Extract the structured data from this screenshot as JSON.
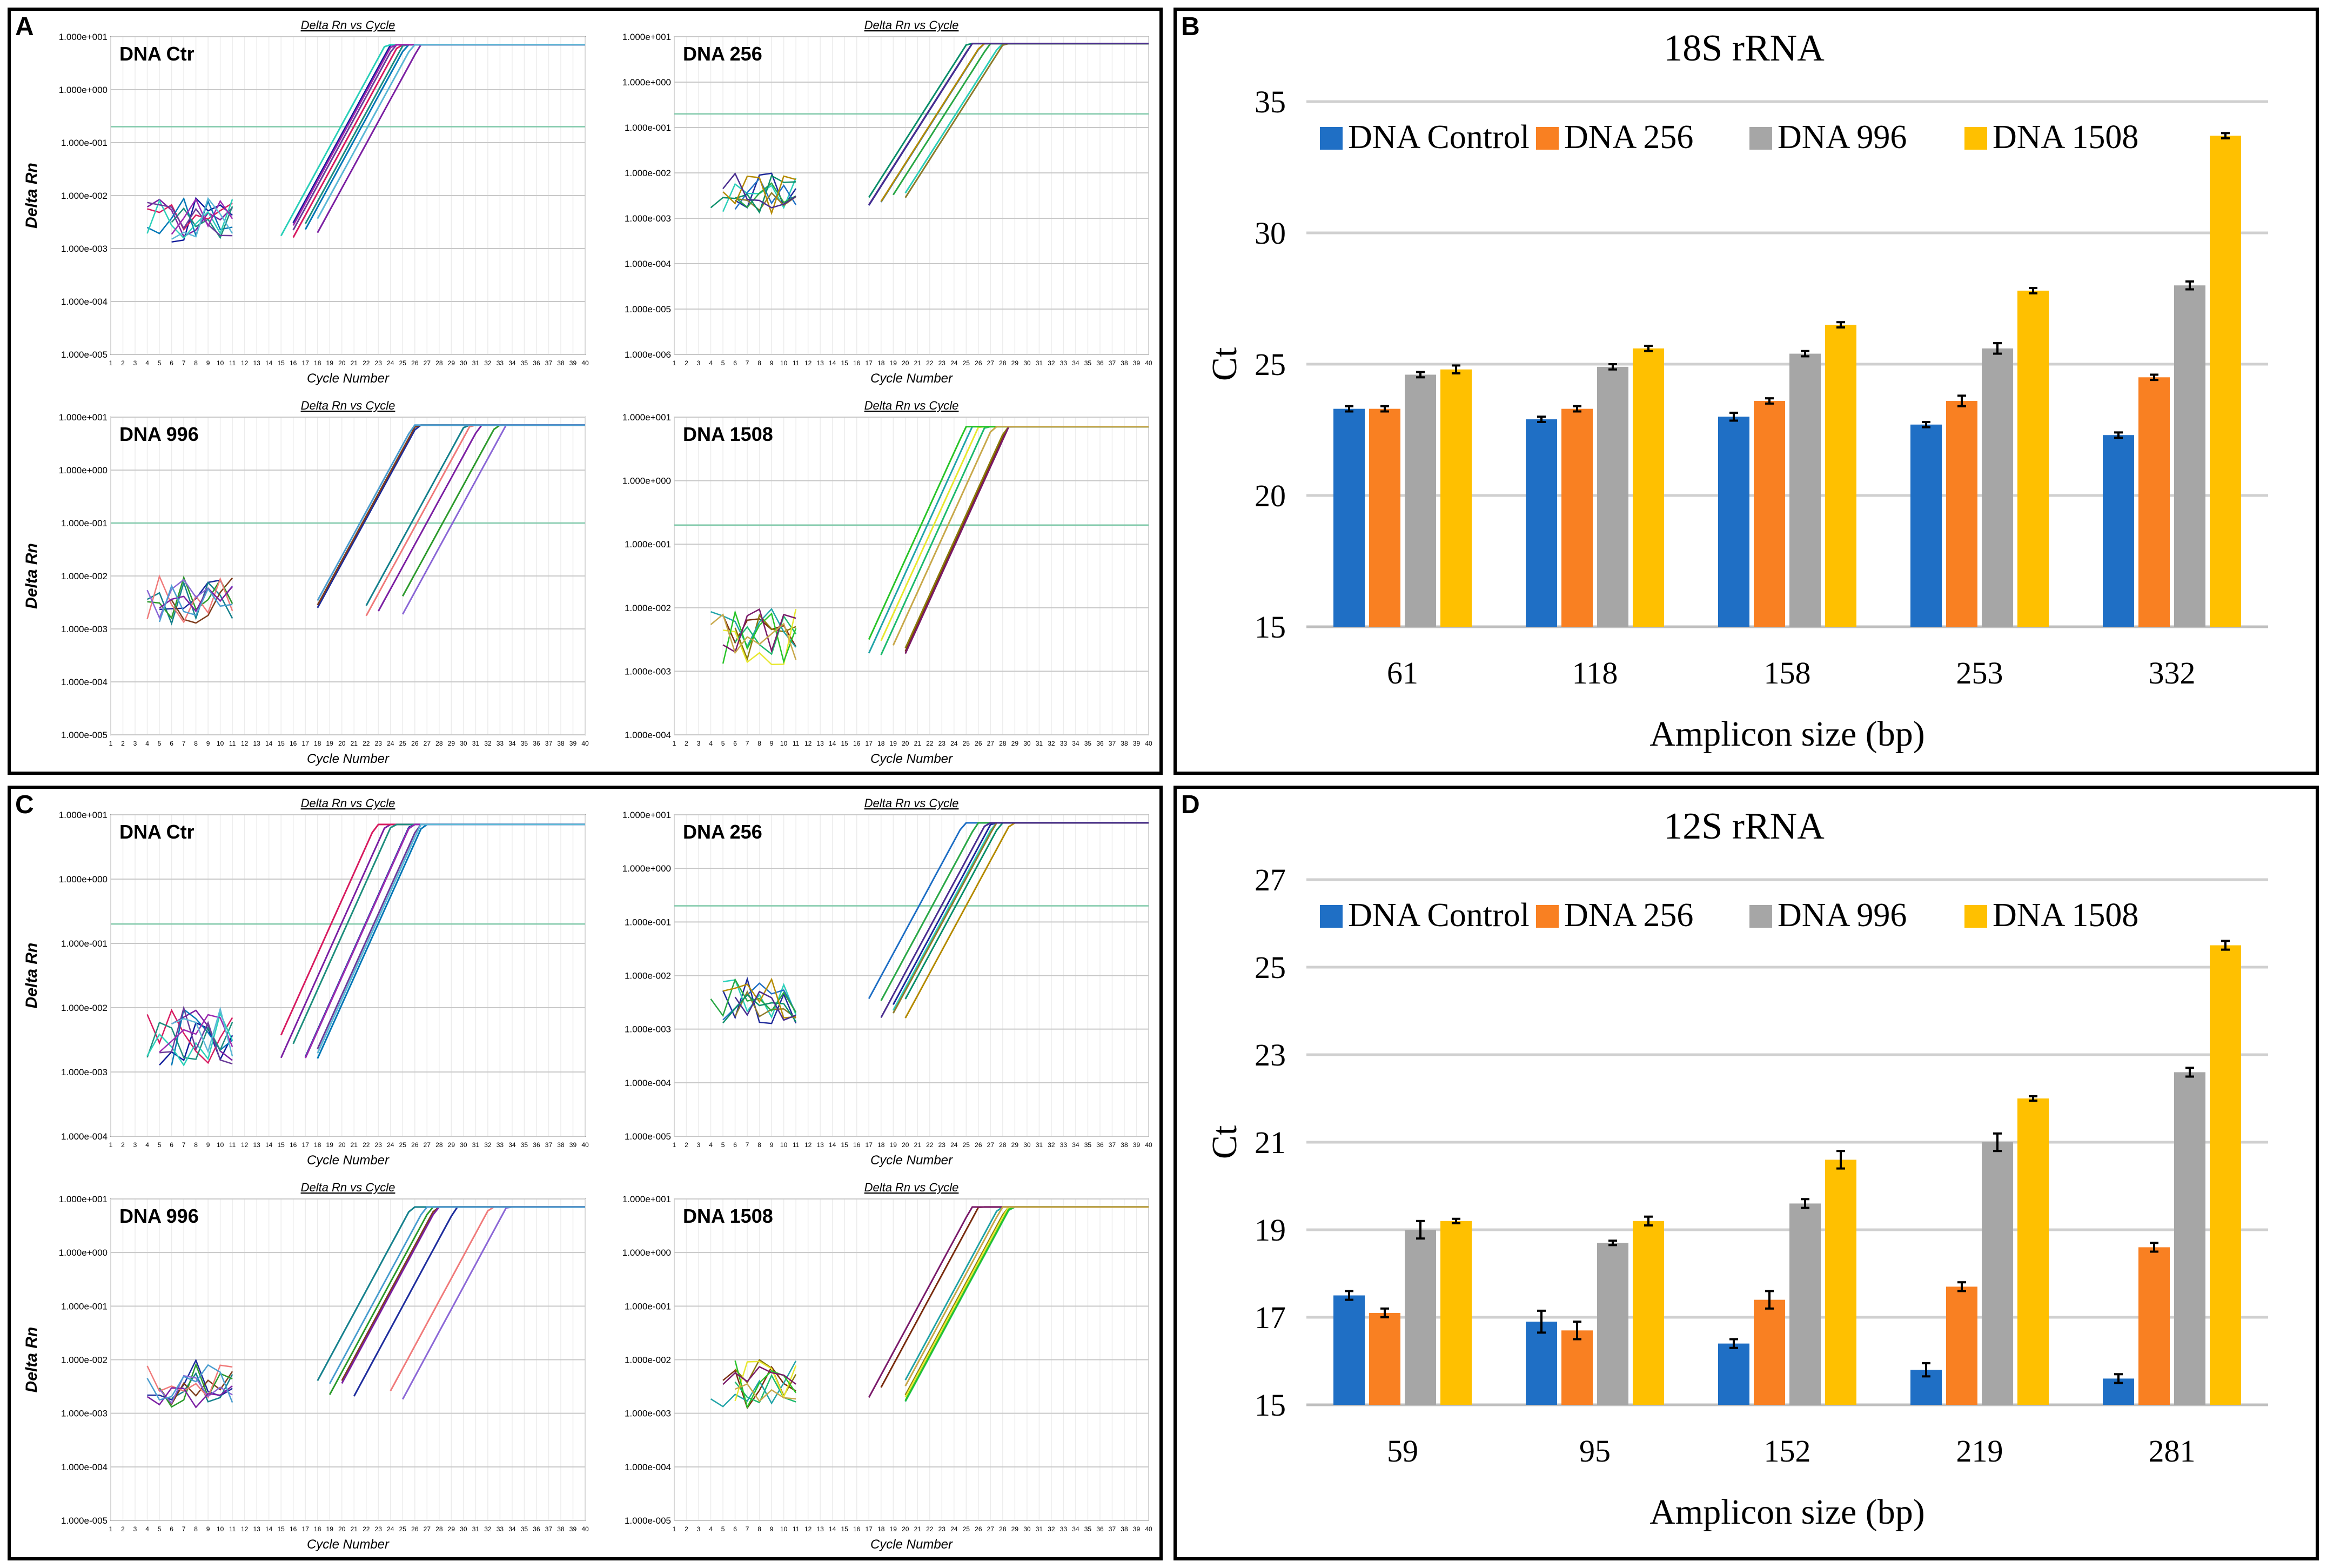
{
  "panel_labels": [
    "A",
    "B",
    "C",
    "D"
  ],
  "chart_data": [
    {
      "type": "line",
      "panel": "A",
      "plot_title": "Delta Rn vs Cycle",
      "xlabel": "Cycle Number",
      "ylabel": "Delta Rn",
      "yscale": "log",
      "ylim": [
        1e-05,
        10
      ],
      "xlim": [
        1,
        40
      ],
      "subplots": [
        {
          "name": "DNA Ctr",
          "ytick_labels": [
            "1.000e+001",
            "1.000e+000",
            "1.000e-001",
            "1.000e-002",
            "1.000e-003",
            "1.000e-004",
            "1.000e-005"
          ],
          "threshold": 0.2
        },
        {
          "name": "DNA 256",
          "ytick_labels": [
            "1.000e+001",
            "1.000e+000",
            "1.000e-001",
            "1.000e-002",
            "1.000e-003",
            "1.000e-004",
            "1.000e-005",
            "1.000e-006"
          ],
          "threshold": 0.2
        },
        {
          "name": "DNA 996",
          "ytick_labels": [
            "1.000e+001",
            "1.000e+000",
            "1.000e-001",
            "1.000e-002",
            "1.000e-003",
            "1.000e-004",
            "1.000e-005"
          ],
          "threshold": 0.1
        },
        {
          "name": "DNA 1508",
          "ytick_labels": [
            "1.000e+001",
            "1.000e+000",
            "1.000e-001",
            "1.000e-002",
            "1.000e-003",
            "1.000e-004"
          ],
          "threshold": 0.2
        }
      ]
    },
    {
      "type": "bar",
      "panel": "B",
      "title": "18S rRNA",
      "xlabel": "Amplicon size (bp)",
      "ylabel": "Ct",
      "ylim": [
        15,
        35
      ],
      "yticks": [
        15,
        20,
        25,
        30,
        35
      ],
      "categories": [
        "61",
        "118",
        "158",
        "253",
        "332"
      ],
      "series": [
        {
          "name": "DNA Control",
          "color": "#1f6fc5",
          "values": [
            23.3,
            22.9,
            23.0,
            22.7,
            22.3
          ],
          "errors": [
            0.1,
            0.1,
            0.15,
            0.1,
            0.1
          ]
        },
        {
          "name": "DNA 256",
          "color": "#f98022",
          "values": [
            23.3,
            23.3,
            23.6,
            23.6,
            24.5
          ],
          "errors": [
            0.1,
            0.1,
            0.1,
            0.2,
            0.1
          ]
        },
        {
          "name": "DNA 996",
          "color": "#a6a6a6",
          "values": [
            24.6,
            24.9,
            25.4,
            25.6,
            28.0
          ],
          "errors": [
            0.1,
            0.1,
            0.1,
            0.2,
            0.15
          ]
        },
        {
          "name": "DNA 1508",
          "color": "#ffc000",
          "values": [
            24.8,
            25.6,
            26.5,
            27.8,
            33.7
          ],
          "errors": [
            0.15,
            0.1,
            0.1,
            0.1,
            0.1
          ]
        }
      ]
    },
    {
      "type": "line",
      "panel": "C",
      "plot_title": "Delta Rn vs Cycle",
      "xlabel": "Cycle Number",
      "ylabel": "Delta Rn",
      "yscale": "log",
      "ylim": [
        1e-05,
        10
      ],
      "xlim": [
        1,
        40
      ],
      "subplots": [
        {
          "name": "DNA Ctr",
          "ytick_labels": [
            "1.000e+001",
            "1.000e+000",
            "1.000e-001",
            "1.000e-002",
            "1.000e-003",
            "1.000e-004"
          ],
          "threshold": 0.2
        },
        {
          "name": "DNA 256",
          "ytick_labels": [
            "1.000e+001",
            "1.000e+000",
            "1.000e-001",
            "1.000e-002",
            "1.000e-003",
            "1.000e-004",
            "1.000e-005"
          ],
          "threshold": 0.2
        },
        {
          "name": "DNA 996",
          "ytick_labels": [
            "1.000e+001",
            "1.000e+000",
            "1.000e-001",
            "1.000e-002",
            "1.000e-003",
            "1.000e-004",
            "1.000e-005"
          ],
          "threshold": null
        },
        {
          "name": "DNA 1508",
          "ytick_labels": [
            "1.000e+001",
            "1.000e+000",
            "1.000e-001",
            "1.000e-002",
            "1.000e-003",
            "1.000e-004",
            "1.000e-005"
          ],
          "threshold": null
        }
      ]
    },
    {
      "type": "bar",
      "panel": "D",
      "title": "12S rRNA",
      "xlabel": "Amplicon size (bp)",
      "ylabel": "Ct",
      "ylim": [
        15,
        27
      ],
      "yticks": [
        15,
        17,
        19,
        21,
        23,
        25,
        27
      ],
      "categories": [
        "59",
        "95",
        "152",
        "219",
        "281"
      ],
      "series": [
        {
          "name": "DNA Control",
          "color": "#1f6fc5",
          "values": [
            17.5,
            16.9,
            16.4,
            15.8,
            15.6
          ],
          "errors": [
            0.1,
            0.25,
            0.1,
            0.15,
            0.1
          ]
        },
        {
          "name": "DNA 256",
          "color": "#f98022",
          "values": [
            17.1,
            16.7,
            17.4,
            17.7,
            18.6
          ],
          "errors": [
            0.1,
            0.2,
            0.2,
            0.1,
            0.1
          ]
        },
        {
          "name": "DNA 996",
          "color": "#a6a6a6",
          "values": [
            19.0,
            18.7,
            19.6,
            21.0,
            22.6
          ],
          "errors": [
            0.2,
            0.05,
            0.1,
            0.2,
            0.1
          ]
        },
        {
          "name": "DNA 1508",
          "color": "#ffc000",
          "values": [
            19.2,
            19.2,
            20.6,
            22.0,
            25.5
          ],
          "errors": [
            0.05,
            0.1,
            0.2,
            0.05,
            0.1
          ]
        }
      ]
    }
  ]
}
